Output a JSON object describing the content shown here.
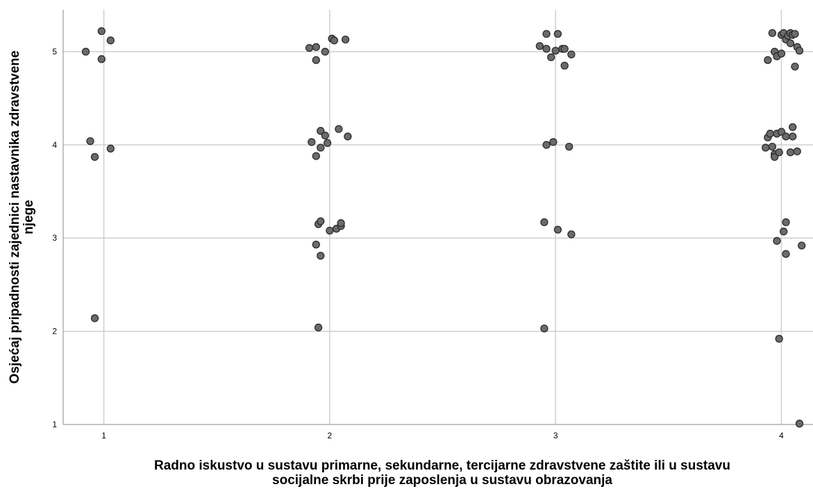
{
  "chart_data": {
    "type": "scatter",
    "title": "",
    "xlabel_lines": [
      "Radno iskustvo u sustavu primarne, sekundarne, tercijarne zdravstvene  zaštite ili u sustavu",
      "socijalne skrbi  prije zaposlenja u sustavu obrazovanja"
    ],
    "ylabel_lines": [
      "Osjećaj pripadnosti zajednici nastavnika zdravstvene",
      "njege"
    ],
    "x_ticks": [
      1,
      2,
      3,
      4
    ],
    "y_ticks": [
      1,
      2,
      3,
      4,
      5
    ],
    "xlim": [
      0.82,
      4.14
    ],
    "ylim": [
      1,
      5.45
    ],
    "grid": true,
    "marker_color": "#6b6b6b",
    "marker_edge": "#2b2b2b",
    "points": [
      [
        0.92,
        5.0
      ],
      [
        0.99,
        5.22
      ],
      [
        1.03,
        5.12
      ],
      [
        0.99,
        4.92
      ],
      [
        0.94,
        4.04
      ],
      [
        0.96,
        3.87
      ],
      [
        1.03,
        3.96
      ],
      [
        0.96,
        2.14
      ],
      [
        1.91,
        5.04
      ],
      [
        1.94,
        5.05
      ],
      [
        1.94,
        4.91
      ],
      [
        1.98,
        5.0
      ],
      [
        2.01,
        5.14
      ],
      [
        2.02,
        5.12
      ],
      [
        2.07,
        5.13
      ],
      [
        1.92,
        4.03
      ],
      [
        1.94,
        3.88
      ],
      [
        1.96,
        3.97
      ],
      [
        1.96,
        4.15
      ],
      [
        1.98,
        4.1
      ],
      [
        1.99,
        4.02
      ],
      [
        2.04,
        4.17
      ],
      [
        2.08,
        4.09
      ],
      [
        1.95,
        3.15
      ],
      [
        1.96,
        3.18
      ],
      [
        1.94,
        2.93
      ],
      [
        1.96,
        2.81
      ],
      [
        2.0,
        3.08
      ],
      [
        2.03,
        3.1
      ],
      [
        2.05,
        3.13
      ],
      [
        2.05,
        3.16
      ],
      [
        1.95,
        2.04
      ],
      [
        2.93,
        5.06
      ],
      [
        2.96,
        5.19
      ],
      [
        2.96,
        5.03
      ],
      [
        2.98,
        4.94
      ],
      [
        3.0,
        5.01
      ],
      [
        3.01,
        5.19
      ],
      [
        3.03,
        5.03
      ],
      [
        3.04,
        5.03
      ],
      [
        3.07,
        4.97
      ],
      [
        3.04,
        4.85
      ],
      [
        2.96,
        4.0
      ],
      [
        2.99,
        4.03
      ],
      [
        3.06,
        3.98
      ],
      [
        2.95,
        3.17
      ],
      [
        3.01,
        3.09
      ],
      [
        3.07,
        3.04
      ],
      [
        2.95,
        2.03
      ],
      [
        3.94,
        4.91
      ],
      [
        3.96,
        5.2
      ],
      [
        3.97,
        5.0
      ],
      [
        3.98,
        4.95
      ],
      [
        4.0,
        5.18
      ],
      [
        4.0,
        4.98
      ],
      [
        4.01,
        5.2
      ],
      [
        4.02,
        5.13
      ],
      [
        4.03,
        5.17
      ],
      [
        4.04,
        5.2
      ],
      [
        4.05,
        5.18
      ],
      [
        4.06,
        5.19
      ],
      [
        4.04,
        5.09
      ],
      [
        4.07,
        5.05
      ],
      [
        4.08,
        5.01
      ],
      [
        4.06,
        4.84
      ],
      [
        3.93,
        3.97
      ],
      [
        3.94,
        4.08
      ],
      [
        3.95,
        4.12
      ],
      [
        3.96,
        3.98
      ],
      [
        3.97,
        3.9
      ],
      [
        3.97,
        3.87
      ],
      [
        3.98,
        4.12
      ],
      [
        3.99,
        3.92
      ],
      [
        4.0,
        4.14
      ],
      [
        4.02,
        4.09
      ],
      [
        4.04,
        3.92
      ],
      [
        4.05,
        4.09
      ],
      [
        4.05,
        4.19
      ],
      [
        4.07,
        3.93
      ],
      [
        3.98,
        2.97
      ],
      [
        4.01,
        3.07
      ],
      [
        4.02,
        3.17
      ],
      [
        4.02,
        2.83
      ],
      [
        4.09,
        2.92
      ],
      [
        3.99,
        1.92
      ],
      [
        4.08,
        1.01
      ]
    ]
  }
}
